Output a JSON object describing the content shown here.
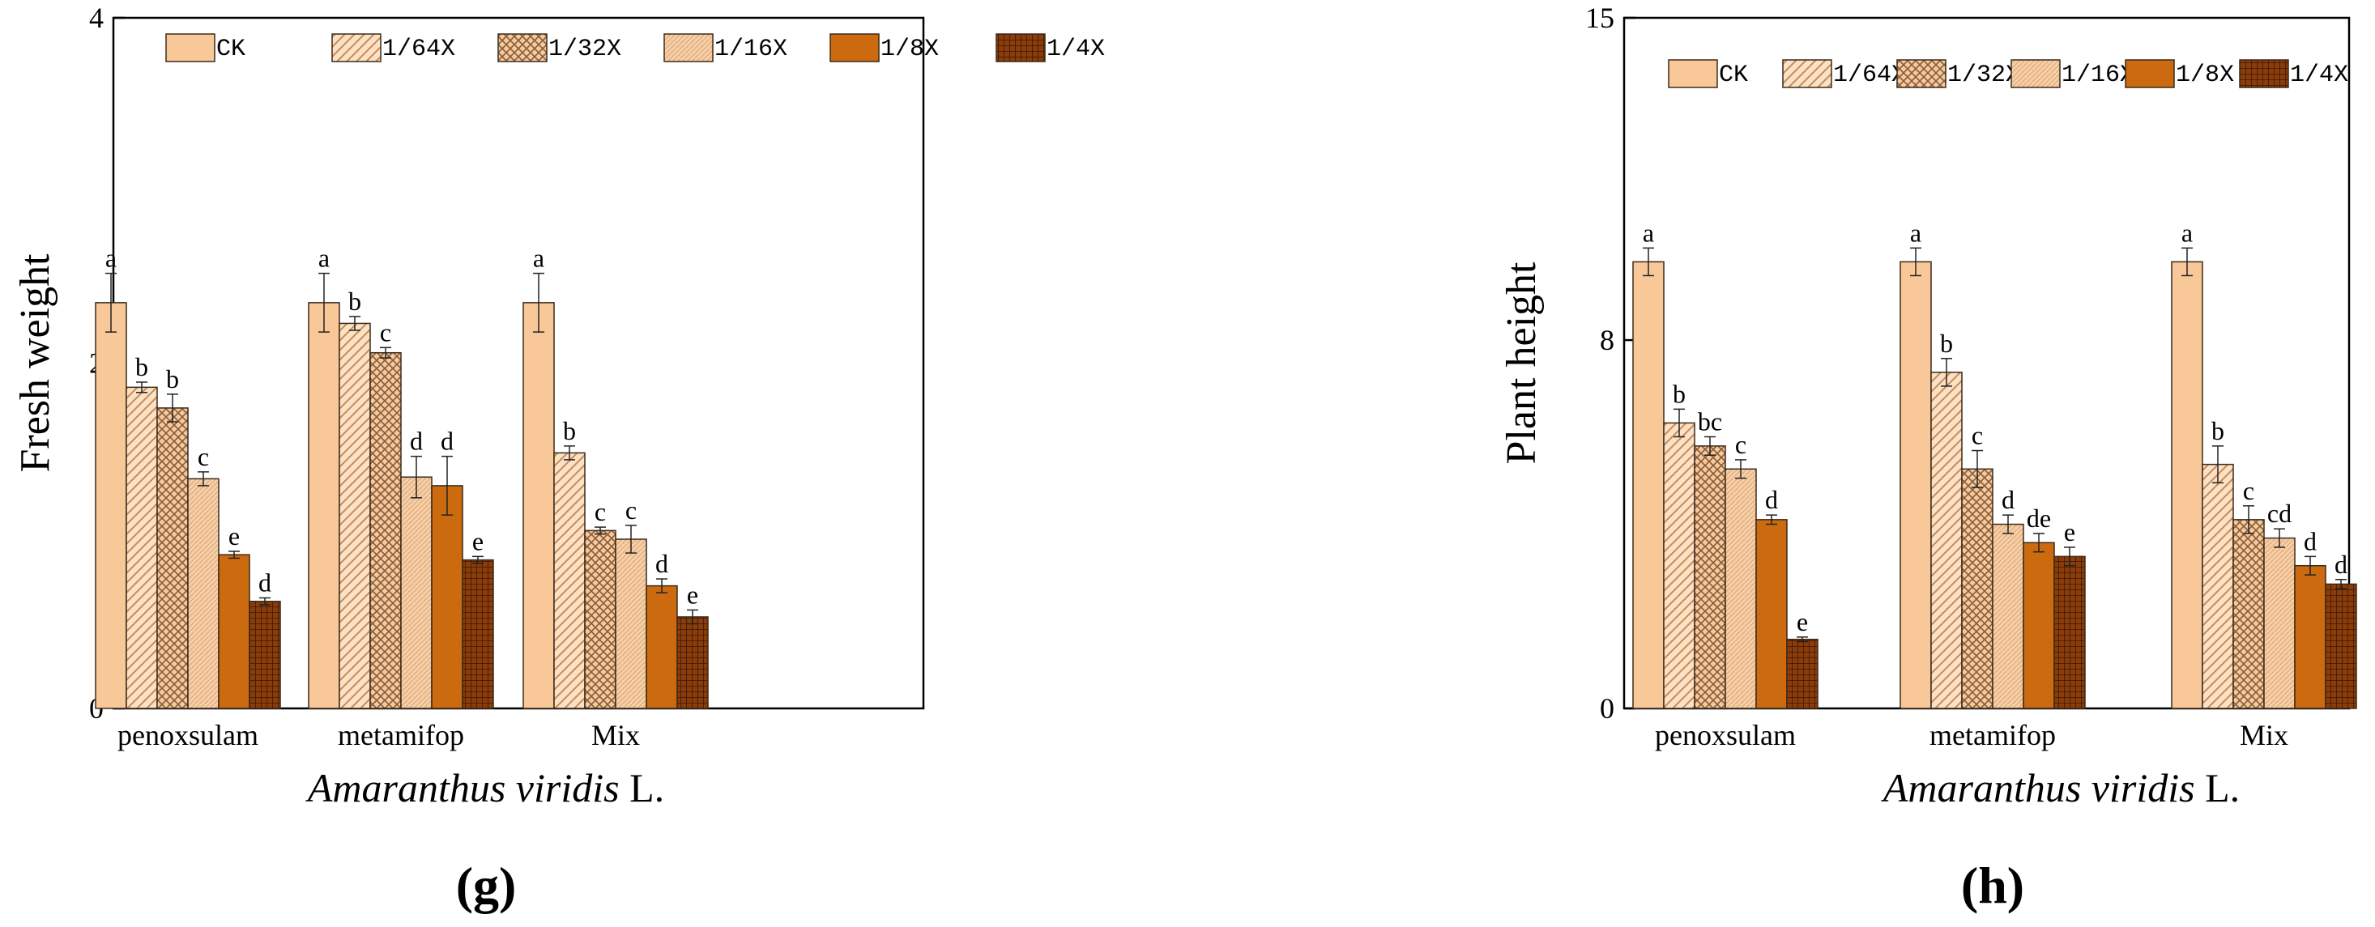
{
  "colors": {
    "light": "#f9c899",
    "dark": "#cc6a10",
    "darker": "#8a3d0a",
    "stroke": "#3a2a1a"
  },
  "legend": [
    "CK",
    "1/64X",
    "1/32X",
    "1/16X",
    "1/8X",
    "1/4X"
  ],
  "chart_data": [
    {
      "type": "bar",
      "panel_label": "(g)",
      "ylabel": "Fresh weight",
      "xlabel_italic": "Amaranthus viridis",
      "xlabel_suffix": " L.",
      "categories": [
        "penoxsulam",
        "metamifop",
        "Mix"
      ],
      "ylim": [
        0,
        4
      ],
      "yticks": [
        0,
        2,
        4
      ],
      "series": [
        {
          "name": "CK",
          "values": [
            2.35,
            2.35,
            2.35
          ],
          "errors": [
            0.17,
            0.17,
            0.17
          ],
          "letters": [
            "a",
            "a",
            "a"
          ]
        },
        {
          "name": "1/64X",
          "values": [
            1.86,
            2.23,
            1.48
          ],
          "errors": [
            0.03,
            0.04,
            0.04
          ],
          "letters": [
            "b",
            "b",
            "b"
          ]
        },
        {
          "name": "1/32X",
          "values": [
            1.74,
            2.06,
            1.03
          ],
          "errors": [
            0.08,
            0.03,
            0.02
          ],
          "letters": [
            "b",
            "c",
            "c"
          ]
        },
        {
          "name": "1/16X",
          "values": [
            1.33,
            1.34,
            0.98
          ],
          "errors": [
            0.04,
            0.12,
            0.08
          ],
          "letters": [
            "c",
            "d",
            "c"
          ]
        },
        {
          "name": "1/8X",
          "values": [
            0.89,
            1.29,
            0.71
          ],
          "errors": [
            0.02,
            0.17,
            0.04
          ],
          "letters": [
            "e",
            "d",
            "d"
          ]
        },
        {
          "name": "1/4X",
          "values": [
            0.62,
            0.86,
            0.53
          ],
          "errors": [
            0.02,
            0.02,
            0.04
          ],
          "letters": [
            "d",
            "e",
            "e"
          ]
        }
      ]
    },
    {
      "type": "bar",
      "panel_label": "(h)",
      "ylabel": "Plant height",
      "xlabel_italic": "Amaranthus viridis",
      "xlabel_suffix": " L.",
      "categories": [
        "penoxsulam",
        "metamifop",
        "Mix"
      ],
      "ylim": [
        0,
        15
      ],
      "yticks": [
        0,
        8,
        15
      ],
      "series": [
        {
          "name": "CK",
          "values": [
            9.7,
            9.7,
            9.7
          ],
          "errors": [
            0.3,
            0.3,
            0.3
          ],
          "letters": [
            "a",
            "a",
            "a"
          ]
        },
        {
          "name": "1/64X",
          "values": [
            6.2,
            7.3,
            5.3
          ],
          "errors": [
            0.3,
            0.3,
            0.4
          ],
          "letters": [
            "b",
            "b",
            "b"
          ]
        },
        {
          "name": "1/32X",
          "values": [
            5.7,
            5.2,
            4.1
          ],
          "errors": [
            0.2,
            0.4,
            0.3
          ],
          "letters": [
            "bc",
            "c",
            "c"
          ]
        },
        {
          "name": "1/16X",
          "values": [
            5.2,
            4.0,
            3.7
          ],
          "errors": [
            0.2,
            0.2,
            0.2
          ],
          "letters": [
            "c",
            "d",
            "cd"
          ]
        },
        {
          "name": "1/8X",
          "values": [
            4.1,
            3.6,
            3.1
          ],
          "errors": [
            0.1,
            0.2,
            0.2
          ],
          "letters": [
            "d",
            "de",
            "d"
          ]
        },
        {
          "name": "1/4X",
          "values": [
            1.5,
            3.3,
            2.7
          ],
          "errors": [
            0.05,
            0.2,
            0.1
          ],
          "letters": [
            "e",
            "e",
            "d"
          ]
        }
      ]
    }
  ]
}
